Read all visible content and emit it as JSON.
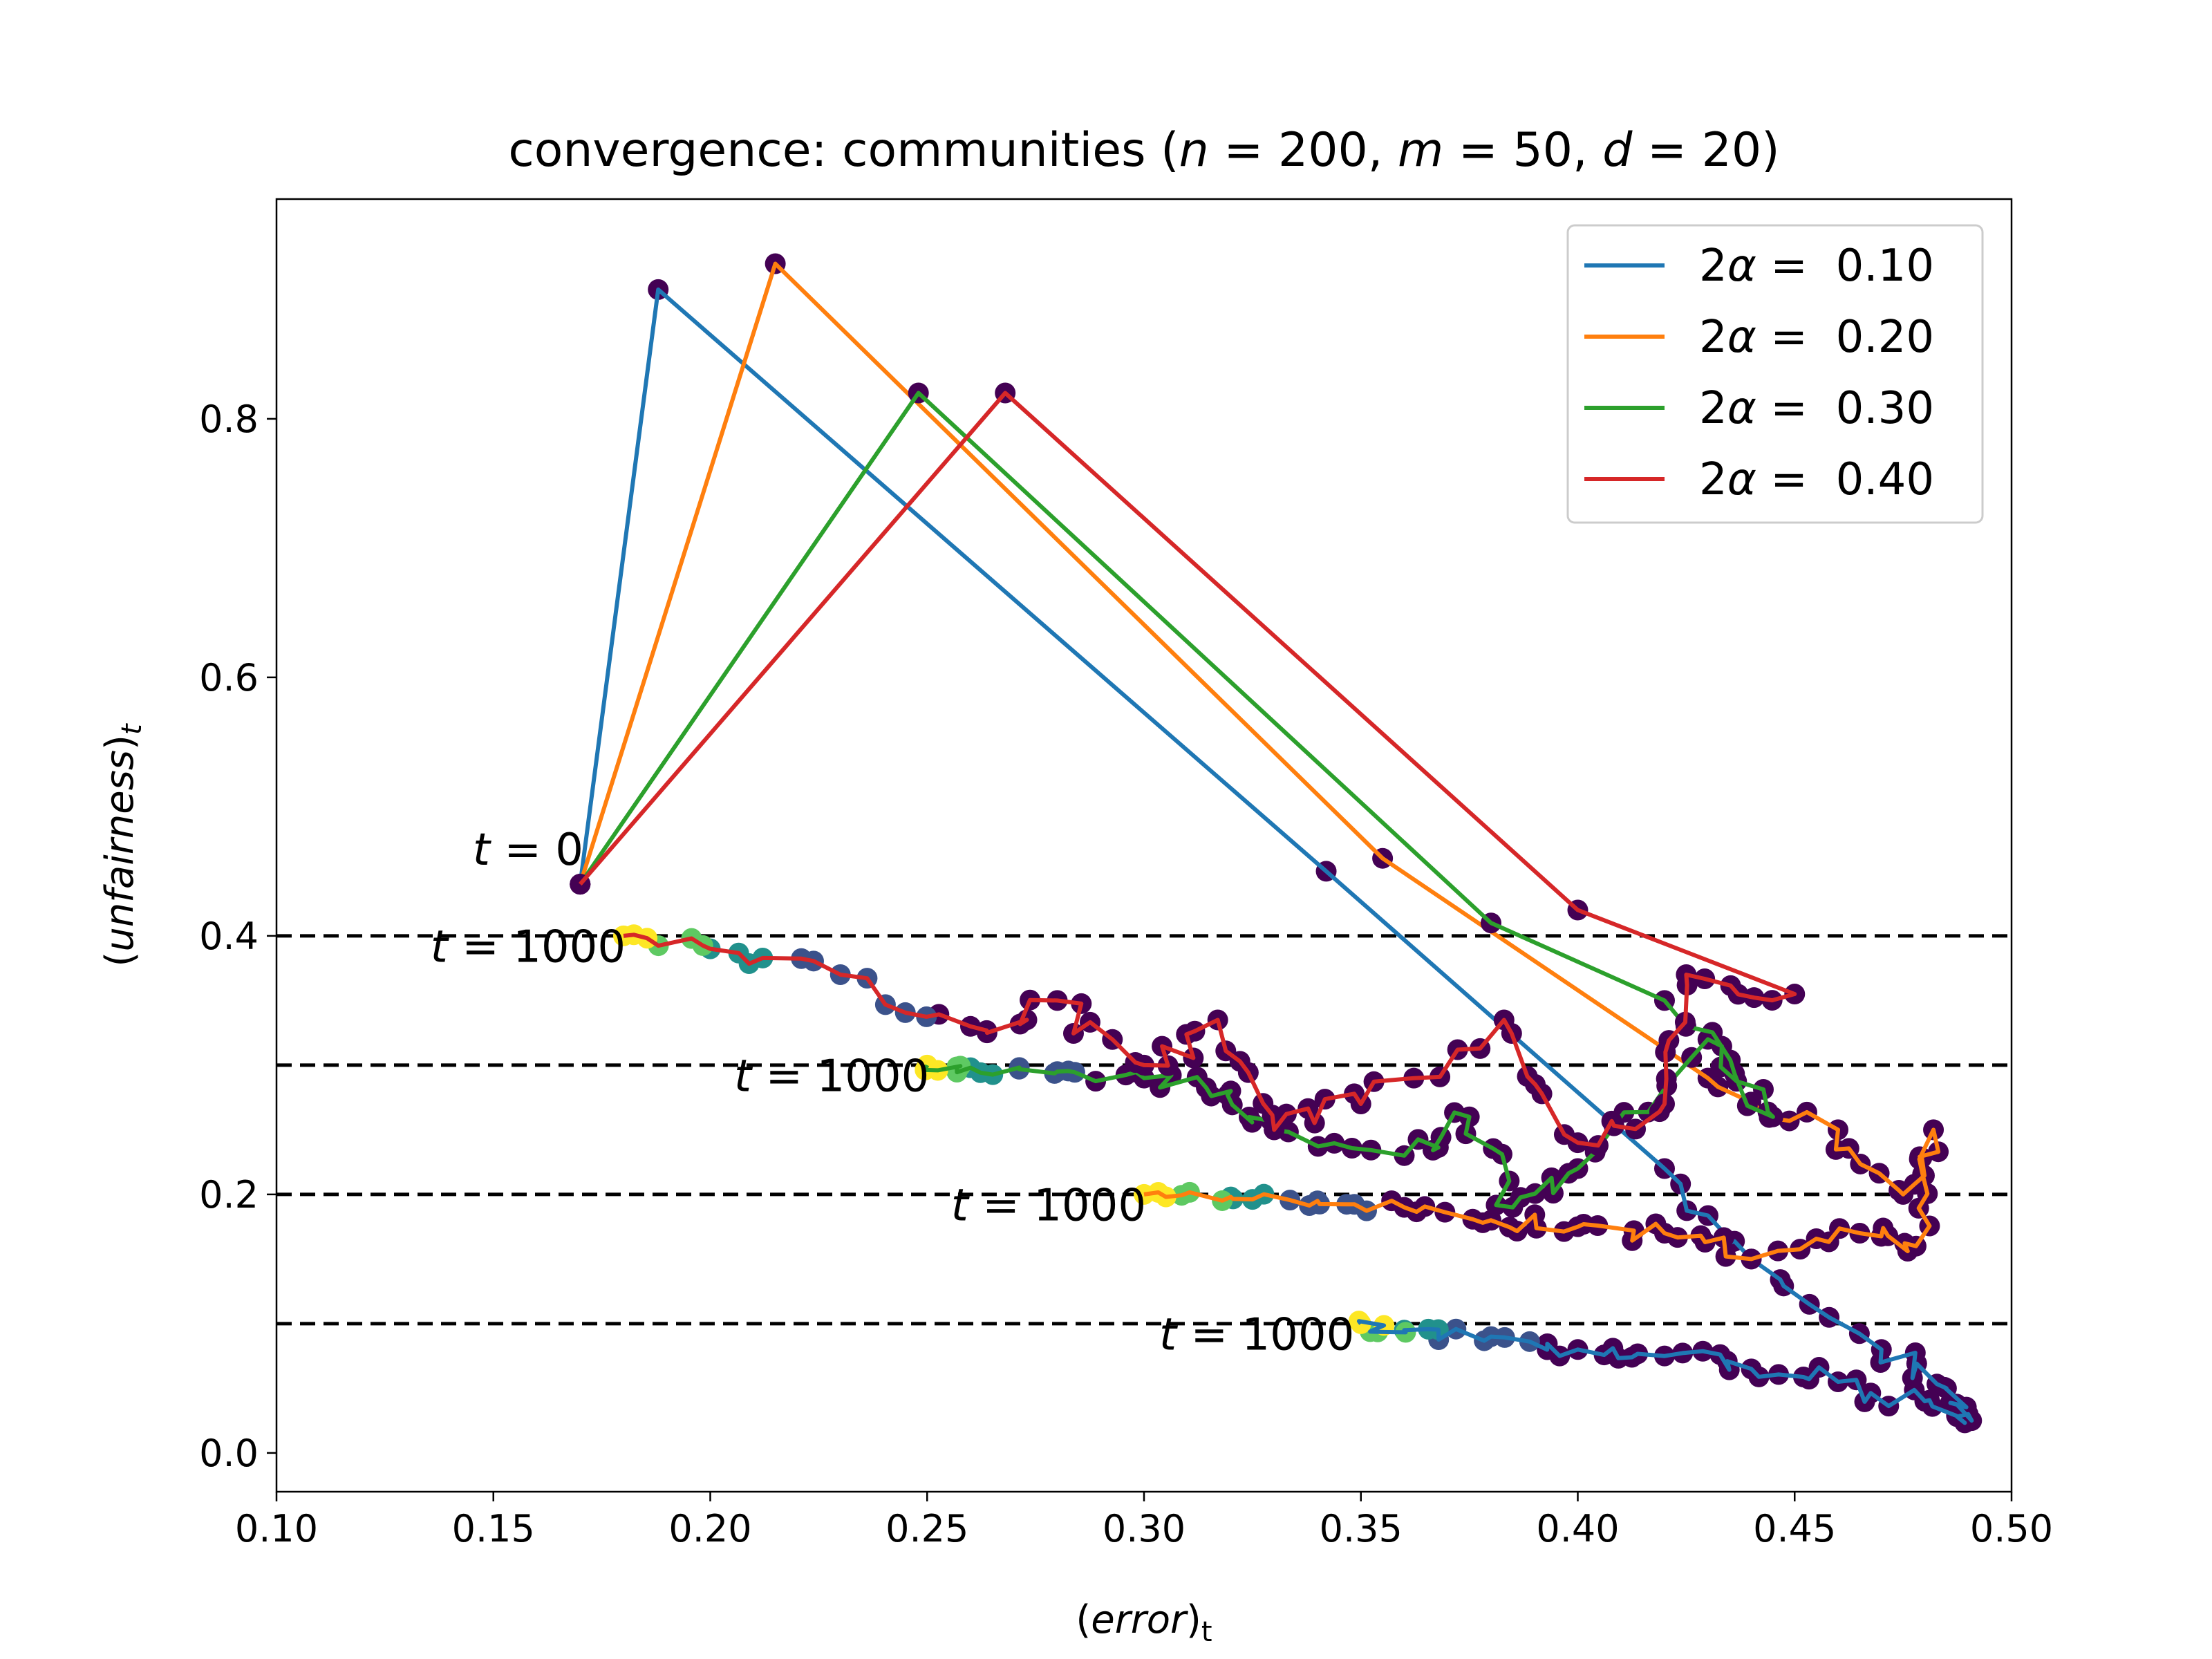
{
  "chart_data": {
    "type": "line",
    "title_prefix": "convergence: communities (",
    "title_params": [
      {
        "var": "n",
        "value": "200"
      },
      {
        "var": "m",
        "value": "50"
      },
      {
        "var": "d",
        "value": "20"
      }
    ],
    "title_suffix": ")",
    "xlabel": "(error)",
    "xlabel_var": "error",
    "xlabel_sub": "t",
    "ylabel": "(unfairness)",
    "ylabel_var": "unfairness",
    "ylabel_sub": "t",
    "xlim": [
      0.1,
      0.5
    ],
    "ylim": [
      -0.03,
      0.97
    ],
    "xticks": [
      0.1,
      0.15,
      0.2,
      0.25,
      0.3,
      0.35,
      0.4,
      0.45,
      0.5
    ],
    "xtick_labels": [
      "0.10",
      "0.15",
      "0.20",
      "0.25",
      "0.30",
      "0.35",
      "0.40",
      "0.45",
      "0.50"
    ],
    "yticks": [
      0.0,
      0.2,
      0.4,
      0.6,
      0.8
    ],
    "ytick_labels": [
      "0.0",
      "0.2",
      "0.4",
      "0.6",
      "0.8"
    ],
    "grid": false,
    "legend_position": "top-right",
    "hlines": [
      0.1,
      0.2,
      0.3,
      0.4
    ],
    "hline_color": "#000000",
    "marker_colors": {
      "early": "#440154",
      "mid": "#3b528b",
      "late": "#21918c",
      "near_end": "#5ec962",
      "end": "#fde725"
    },
    "annotations": [
      {
        "label": "t = 0",
        "x": 0.158,
        "y": 0.455
      },
      {
        "label": "t = 1000",
        "x": 0.158,
        "y": 0.38
      },
      {
        "label": "t = 1000",
        "x": 0.228,
        "y": 0.28
      },
      {
        "label": "t = 1000",
        "x": 0.278,
        "y": 0.18
      },
      {
        "label": "t = 1000",
        "x": 0.326,
        "y": 0.08
      }
    ],
    "series": [
      {
        "name": "2α =  0.10",
        "alpha_label": "2α =",
        "alpha_value": "0.10",
        "color": "#1f77b4",
        "target": 0.1,
        "points": [
          [
            0.17,
            0.44
          ],
          [
            0.188,
            0.9
          ],
          [
            0.342,
            0.45
          ],
          [
            0.42,
            0.22
          ],
          [
            0.44,
            0.15
          ],
          [
            0.47,
            0.08
          ],
          [
            0.485,
            0.05
          ],
          [
            0.49,
            0.03
          ],
          [
            0.48,
            0.04
          ],
          [
            0.46,
            0.055
          ],
          [
            0.44,
            0.065
          ],
          [
            0.42,
            0.075
          ],
          [
            0.4,
            0.08
          ],
          [
            0.38,
            0.09
          ],
          [
            0.36,
            0.095
          ],
          [
            0.35,
            0.1
          ]
        ]
      },
      {
        "name": "2α =  0.20",
        "alpha_label": "2α =",
        "alpha_value": "0.20",
        "color": "#ff7f0e",
        "target": 0.2,
        "points": [
          [
            0.17,
            0.44
          ],
          [
            0.215,
            0.92
          ],
          [
            0.355,
            0.46
          ],
          [
            0.43,
            0.29
          ],
          [
            0.46,
            0.25
          ],
          [
            0.475,
            0.2
          ],
          [
            0.482,
            0.25
          ],
          [
            0.478,
            0.16
          ],
          [
            0.465,
            0.17
          ],
          [
            0.44,
            0.15
          ],
          [
            0.42,
            0.17
          ],
          [
            0.4,
            0.175
          ],
          [
            0.38,
            0.18
          ],
          [
            0.36,
            0.19
          ],
          [
            0.34,
            0.195
          ],
          [
            0.32,
            0.198
          ],
          [
            0.3,
            0.2
          ]
        ]
      },
      {
        "name": "2α =  0.30",
        "alpha_label": "2α =",
        "alpha_value": "0.30",
        "color": "#2ca02c",
        "target": 0.3,
        "points": [
          [
            0.17,
            0.44
          ],
          [
            0.248,
            0.82
          ],
          [
            0.38,
            0.41
          ],
          [
            0.42,
            0.35
          ],
          [
            0.445,
            0.26
          ],
          [
            0.43,
            0.32
          ],
          [
            0.4,
            0.22
          ],
          [
            0.385,
            0.19
          ],
          [
            0.375,
            0.26
          ],
          [
            0.36,
            0.23
          ],
          [
            0.33,
            0.25
          ],
          [
            0.32,
            0.28
          ],
          [
            0.3,
            0.29
          ],
          [
            0.28,
            0.295
          ],
          [
            0.26,
            0.298
          ],
          [
            0.25,
            0.3
          ]
        ]
      },
      {
        "name": "2α =  0.40",
        "alpha_label": "2α =",
        "alpha_value": "0.40",
        "color": "#d62728",
        "target": 0.4,
        "points": [
          [
            0.17,
            0.44
          ],
          [
            0.268,
            0.82
          ],
          [
            0.4,
            0.42
          ],
          [
            0.45,
            0.355
          ],
          [
            0.425,
            0.37
          ],
          [
            0.42,
            0.27
          ],
          [
            0.4,
            0.24
          ],
          [
            0.383,
            0.335
          ],
          [
            0.35,
            0.27
          ],
          [
            0.33,
            0.25
          ],
          [
            0.317,
            0.335
          ],
          [
            0.3,
            0.3
          ],
          [
            0.28,
            0.35
          ],
          [
            0.26,
            0.33
          ],
          [
            0.23,
            0.37
          ],
          [
            0.2,
            0.39
          ],
          [
            0.18,
            0.4
          ]
        ]
      }
    ]
  }
}
